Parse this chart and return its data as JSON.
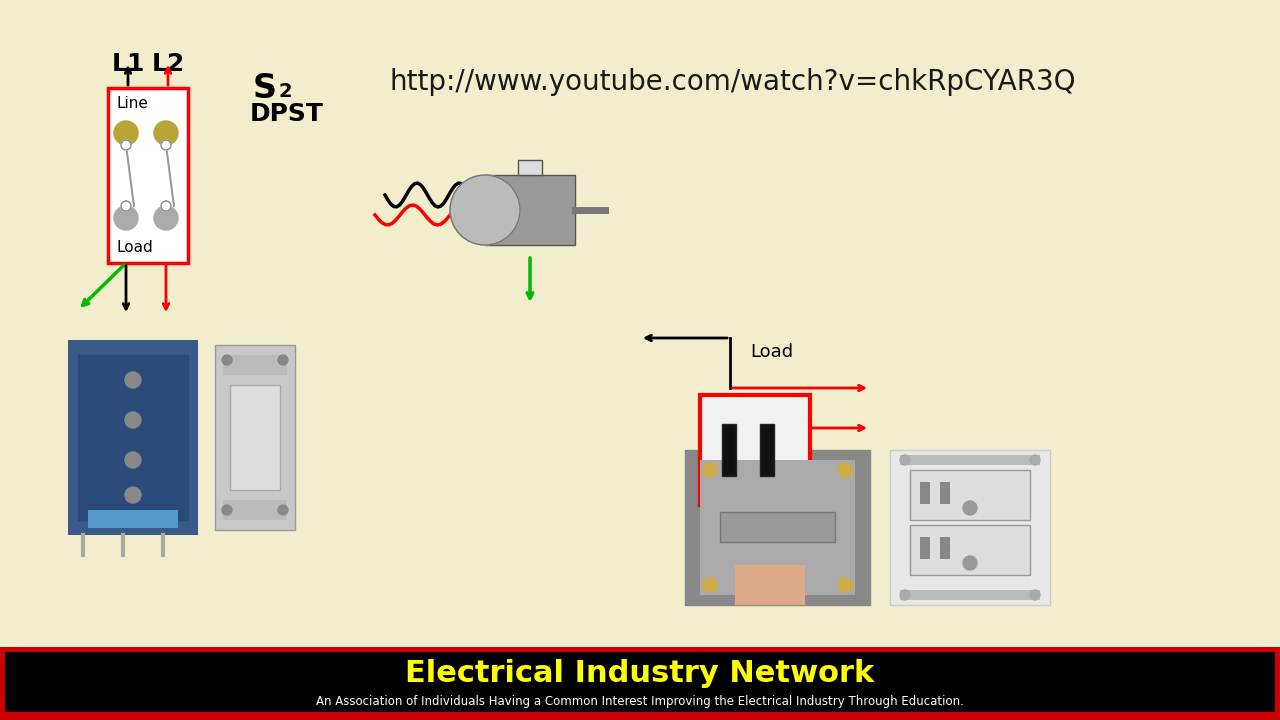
{
  "bg_color": "#f2edcc",
  "title_url": "http://www.youtube.com/watch?v=chkRpCYAR3Q",
  "footer_text1": "Electrical Industry Network",
  "footer_text2": "An Association of Individuals Having a Common Interest Improving the Electrical Industry Through Education."
}
